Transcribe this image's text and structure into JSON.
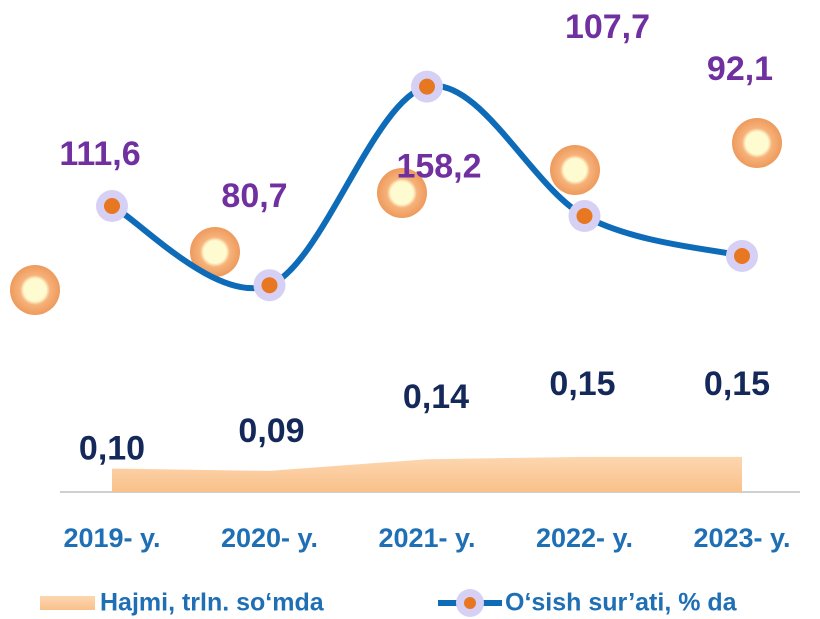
{
  "chart_data": {
    "type": "line",
    "categories": [
      "2019- y.",
      "2020- y.",
      "2021- y.",
      "2022- y.",
      "2023- y."
    ],
    "series": [
      {
        "name": "Hajmi, trln. so‘mda",
        "type": "area",
        "color": "#fdc99a",
        "values": [
          0.1,
          0.09,
          0.14,
          0.15,
          0.15
        ],
        "value_labels": [
          "0,10",
          "0,09",
          "0,14",
          "0,15",
          "0,15"
        ]
      },
      {
        "name": "O‘sish sur’ati, % da",
        "color": "#0e6bb8",
        "axis": "y2",
        "values": [
          111.6,
          80.7,
          158.2,
          107.7,
          92.1
        ],
        "value_labels": [
          "111,6",
          "80,7",
          "158,2",
          "107,7",
          "92,1"
        ]
      }
    ],
    "ylim": [
      0,
      2.1
    ],
    "y2lim": [
      0,
      192
    ]
  }
}
